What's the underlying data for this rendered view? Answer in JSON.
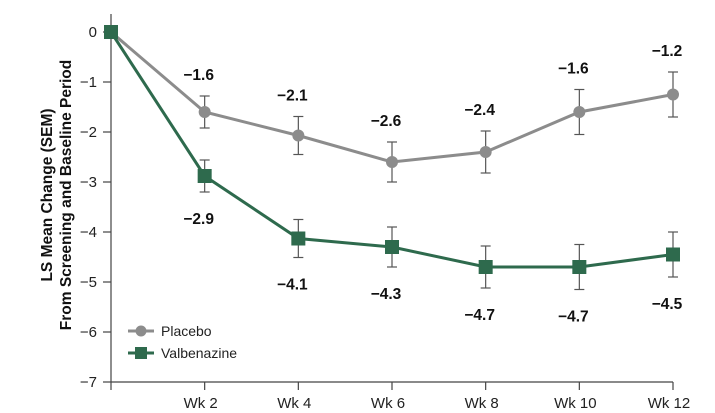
{
  "chart_data": {
    "type": "line",
    "x": [
      "",
      "Wk 2",
      "Wk 4",
      "Wk 6",
      "Wk 8",
      "Wk 10",
      "Wk 12"
    ],
    "ylabel_lines": [
      "LS Mean Change (SEM)",
      "From Screening and Baseline Period"
    ],
    "ylim": [
      -7,
      0
    ],
    "yticks": [
      "0",
      "−1",
      "−2",
      "−3",
      "−4",
      "−5",
      "−6",
      "−7"
    ],
    "grid": false,
    "legend_position": "bottom-left",
    "series": [
      {
        "name": "Placebo",
        "color": "#8c8c8c",
        "marker": "circle",
        "values": [
          0,
          -1.6,
          -2.07,
          -2.6,
          -2.4,
          -1.6,
          -1.25
        ],
        "errors": [
          0,
          0.32,
          0.38,
          0.4,
          0.42,
          0.45,
          0.45
        ],
        "labels": [
          "",
          "−1.6",
          "−2.1",
          "−2.6",
          "−2.4",
          "−1.6",
          "−1.2"
        ],
        "label_side": "above"
      },
      {
        "name": "Valbenazine",
        "color": "#2e6a4d",
        "marker": "square",
        "values": [
          0,
          -2.88,
          -4.13,
          -4.3,
          -4.7,
          -4.7,
          -4.45
        ],
        "errors": [
          0,
          0.32,
          0.38,
          0.4,
          0.42,
          0.45,
          0.45
        ],
        "labels": [
          "",
          "−2.9",
          "−4.1",
          "−4.3",
          "−4.7",
          "−4.7",
          "−4.5"
        ],
        "label_side": "below"
      }
    ]
  }
}
